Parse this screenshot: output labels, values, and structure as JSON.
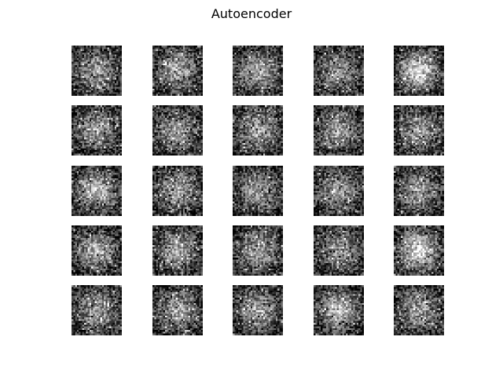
{
  "figure": {
    "title": "Autoencoder"
  },
  "grid": {
    "rows": 5,
    "cols": 5,
    "image_resolution": 28,
    "colormap": "gray",
    "brightness": [
      [
        0.45,
        0.48,
        0.5,
        0.42,
        0.7
      ],
      [
        0.46,
        0.47,
        0.48,
        0.47,
        0.45
      ],
      [
        0.56,
        0.48,
        0.47,
        0.45,
        0.46
      ],
      [
        0.52,
        0.48,
        0.47,
        0.44,
        0.72
      ],
      [
        0.45,
        0.46,
        0.48,
        0.6,
        0.44
      ]
    ]
  }
}
